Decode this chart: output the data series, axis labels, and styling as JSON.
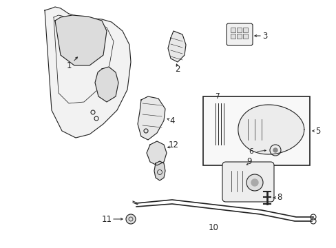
{
  "bg_color": "#ffffff",
  "line_color": "#222222",
  "figsize": [
    4.89,
    3.6
  ],
  "dpi": 100,
  "label_fontsize": 8.5
}
